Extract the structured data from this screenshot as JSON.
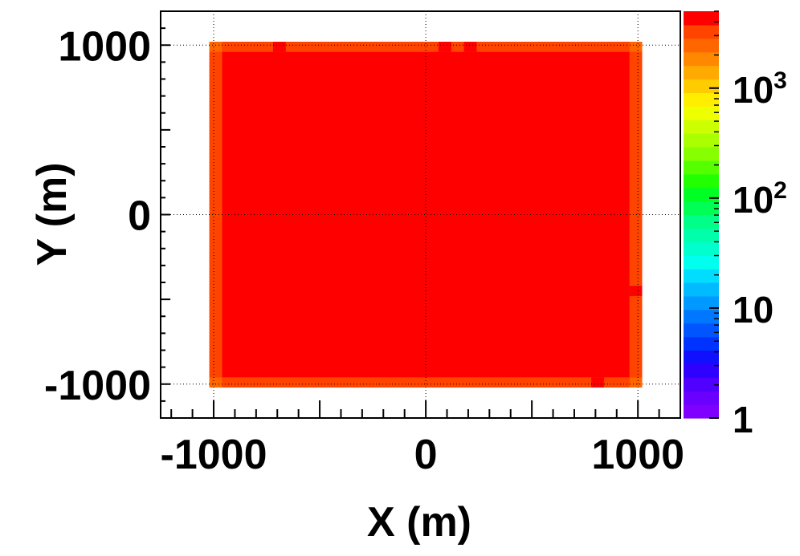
{
  "chart_data": {
    "type": "heatmap",
    "title": "",
    "xlabel": "X (m)",
    "ylabel": "Y (m)",
    "xlim": [
      -1250,
      1200
    ],
    "ylim": [
      -1200,
      1200
    ],
    "grid": true,
    "z_scale": "log",
    "zlim": [
      1,
      5000
    ],
    "x_ticks": [
      {
        "value": -1000,
        "label": "-1000"
      },
      {
        "value": 0,
        "label": "0"
      },
      {
        "value": 1000,
        "label": "1000"
      }
    ],
    "y_ticks": [
      {
        "value": -1000,
        "label": "-1000"
      },
      {
        "value": 0,
        "label": "0"
      },
      {
        "value": 1000,
        "label": "1000"
      }
    ],
    "z_ticks": [
      {
        "value": 1,
        "base": "1",
        "exp": ""
      },
      {
        "value": 10,
        "base": "10",
        "exp": ""
      },
      {
        "value": 100,
        "base": "10",
        "exp": "2"
      },
      {
        "value": 1000,
        "base": "10",
        "exp": "3"
      }
    ],
    "bin_size": 60,
    "cells": [
      {
        "x0": -1020,
        "x1": 1020,
        "y0": -1020,
        "y1": 1020,
        "value": 4000
      },
      {
        "x0": -960,
        "x1": 960,
        "y0": -960,
        "y1": 960,
        "value": 5000
      },
      {
        "x0": -1020,
        "x1": -960,
        "y0": -960,
        "y1": 960,
        "value": 3400
      },
      {
        "x0": 960,
        "x1": 1020,
        "y0": -960,
        "y1": 960,
        "value": 3400
      },
      {
        "x0": -960,
        "x1": 960,
        "y0": 960,
        "y1": 1020,
        "value": 3400
      },
      {
        "x0": -960,
        "x1": 960,
        "y0": -1020,
        "y1": -960,
        "value": 3400
      },
      {
        "x0": -1020,
        "x1": -960,
        "y0": 960,
        "y1": 1020,
        "value": 2400
      },
      {
        "x0": 960,
        "x1": 1020,
        "y0": 960,
        "y1": 1020,
        "value": 2400
      },
      {
        "x0": -1020,
        "x1": -960,
        "y0": -1020,
        "y1": -960,
        "value": 2400
      },
      {
        "x0": 960,
        "x1": 1020,
        "y0": -1020,
        "y1": -960,
        "value": 2400
      },
      {
        "x0": -720,
        "x1": -660,
        "y0": 960,
        "y1": 1020,
        "value": 5000
      },
      {
        "x0": 60,
        "x1": 120,
        "y0": 960,
        "y1": 1020,
        "value": 5000
      },
      {
        "x0": 180,
        "x1": 240,
        "y0": 960,
        "y1": 1020,
        "value": 5000
      },
      {
        "x0": 780,
        "x1": 840,
        "y0": -1020,
        "y1": -960,
        "value": 5000
      },
      {
        "x0": 960,
        "x1": 1020,
        "y0": -480,
        "y1": -420,
        "value": 5000
      }
    ],
    "palette": [
      "#7f00ff",
      "#6a00ff",
      "#4f00ff",
      "#3000ff",
      "#1010ff",
      "#0033ff",
      "#0055ff",
      "#0077ff",
      "#0099ff",
      "#00bbff",
      "#00ddff",
      "#00ffee",
      "#00ffcc",
      "#00ffaa",
      "#00ff88",
      "#00ff55",
      "#00ff22",
      "#22ff00",
      "#55ff00",
      "#88ff00",
      "#aaff00",
      "#ccff00",
      "#eeff00",
      "#ffee00",
      "#ffcc00",
      "#ffaa00",
      "#ff8800",
      "#ff6600",
      "#ff4400",
      "#ff0000"
    ]
  }
}
